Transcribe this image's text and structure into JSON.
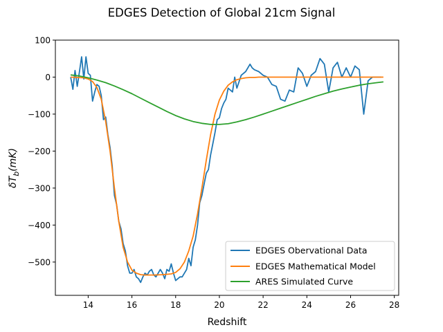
{
  "chart_data": {
    "type": "line",
    "title": "EDGES Detection of Global 21cm Signal",
    "xlabel": "Redshift",
    "ylabel_text": "δT",
    "ylabel_sub": "b",
    "ylabel_unit": "(mK)",
    "xlim": [
      12.5,
      28.2
    ],
    "ylim": [
      -590,
      100
    ],
    "xticks": [
      14,
      16,
      18,
      20,
      22,
      24,
      26,
      28
    ],
    "yticks": [
      100,
      0,
      -100,
      -200,
      -300,
      -400,
      -500
    ],
    "legend_position": "lower right",
    "series": [
      {
        "name": "EDGES Obervational Data",
        "color": "#1f77b4",
        "x": [
          13.2,
          13.3,
          13.4,
          13.5,
          13.6,
          13.7,
          13.8,
          13.9,
          14.0,
          14.1,
          14.2,
          14.3,
          14.4,
          14.5,
          14.6,
          14.7,
          14.8,
          14.9,
          15.0,
          15.1,
          15.2,
          15.3,
          15.4,
          15.5,
          15.6,
          15.7,
          15.8,
          15.9,
          16.0,
          16.1,
          16.2,
          16.3,
          16.4,
          16.5,
          16.6,
          16.7,
          16.8,
          16.9,
          17.0,
          17.1,
          17.2,
          17.3,
          17.4,
          17.5,
          17.6,
          17.7,
          17.8,
          17.9,
          18.0,
          18.1,
          18.2,
          18.3,
          18.4,
          18.5,
          18.6,
          18.7,
          18.8,
          18.9,
          19.0,
          19.1,
          19.2,
          19.3,
          19.4,
          19.5,
          19.6,
          19.7,
          19.8,
          19.9,
          20.0,
          20.1,
          20.2,
          20.3,
          20.4,
          20.6,
          20.7,
          20.8,
          21.0,
          21.2,
          21.4,
          21.5,
          21.6,
          21.8,
          22.0,
          22.2,
          22.4,
          22.6,
          22.8,
          23.0,
          23.2,
          23.4,
          23.6,
          23.8,
          24.0,
          24.2,
          24.4,
          24.6,
          24.8,
          25.0,
          25.2,
          25.4,
          25.6,
          25.8,
          26.0,
          26.2,
          26.4,
          26.6,
          26.8,
          27.0,
          27.2,
          27.4
        ],
        "y": [
          0,
          -33,
          18,
          -25,
          15,
          55,
          -5,
          55,
          10,
          5,
          -65,
          -40,
          -20,
          -25,
          -50,
          -115,
          -108,
          -155,
          -190,
          -240,
          -320,
          -345,
          -390,
          -410,
          -450,
          -470,
          -510,
          -530,
          -530,
          -520,
          -540,
          -545,
          -555,
          -540,
          -530,
          -535,
          -525,
          -520,
          -535,
          -540,
          -530,
          -520,
          -530,
          -545,
          -520,
          -525,
          -505,
          -530,
          -550,
          -545,
          -540,
          -540,
          -530,
          -520,
          -490,
          -510,
          -460,
          -440,
          -400,
          -340,
          -320,
          -290,
          -260,
          -250,
          -210,
          -180,
          -150,
          -115,
          -110,
          -85,
          -70,
          -60,
          -30,
          -40,
          0,
          -30,
          5,
          15,
          35,
          25,
          20,
          15,
          5,
          0,
          -20,
          -25,
          -60,
          -65,
          -35,
          -40,
          25,
          10,
          -25,
          5,
          15,
          50,
          35,
          -40,
          25,
          40,
          0,
          25,
          0,
          30,
          20,
          -100,
          -10,
          0,
          0,
          0
        ]
      },
      {
        "name": "EDGES Mathematical Model",
        "color": "#ff7f0e",
        "x": [
          13.2,
          13.5,
          13.8,
          14.0,
          14.2,
          14.4,
          14.6,
          14.8,
          15.0,
          15.2,
          15.4,
          15.6,
          15.8,
          16.0,
          16.2,
          16.4,
          16.6,
          16.8,
          17.0,
          17.4,
          17.8,
          18.0,
          18.2,
          18.4,
          18.6,
          18.8,
          19.0,
          19.2,
          19.4,
          19.6,
          19.8,
          20.0,
          20.2,
          20.4,
          20.6,
          20.8,
          21.0,
          21.2,
          21.4,
          21.6,
          21.8,
          22.0,
          22.5,
          23.0,
          24.0,
          25.0,
          26.0,
          27.0,
          27.5
        ],
        "y": [
          0,
          -1,
          -2,
          -5,
          -12,
          -28,
          -60,
          -120,
          -200,
          -300,
          -390,
          -460,
          -500,
          -522,
          -530,
          -534,
          -535,
          -535,
          -535,
          -534,
          -532,
          -528,
          -518,
          -500,
          -470,
          -430,
          -370,
          -300,
          -225,
          -155,
          -100,
          -62,
          -38,
          -22,
          -13,
          -7,
          -4,
          -2,
          -1,
          -1,
          0,
          0,
          0,
          0,
          0,
          0,
          0,
          0,
          0
        ]
      },
      {
        "name": "ARES Simulated Curve",
        "color": "#2ca02c",
        "x": [
          13.2,
          13.6,
          14.0,
          14.4,
          14.8,
          15.2,
          15.6,
          16.0,
          16.4,
          16.8,
          17.2,
          17.6,
          18.0,
          18.4,
          18.8,
          19.2,
          19.6,
          20.0,
          20.4,
          20.8,
          21.2,
          21.6,
          22.0,
          22.4,
          22.8,
          23.2,
          23.6,
          24.0,
          24.4,
          24.8,
          25.2,
          25.6,
          26.0,
          26.4,
          26.8,
          27.2,
          27.5
        ],
        "y": [
          6,
          3,
          -2,
          -8,
          -15,
          -24,
          -34,
          -45,
          -57,
          -69,
          -81,
          -93,
          -104,
          -113,
          -120,
          -125,
          -128,
          -128,
          -126,
          -121,
          -115,
          -108,
          -100,
          -92,
          -84,
          -76,
          -68,
          -60,
          -52,
          -45,
          -38,
          -32,
          -27,
          -22,
          -18,
          -15,
          -13
        ]
      }
    ]
  }
}
